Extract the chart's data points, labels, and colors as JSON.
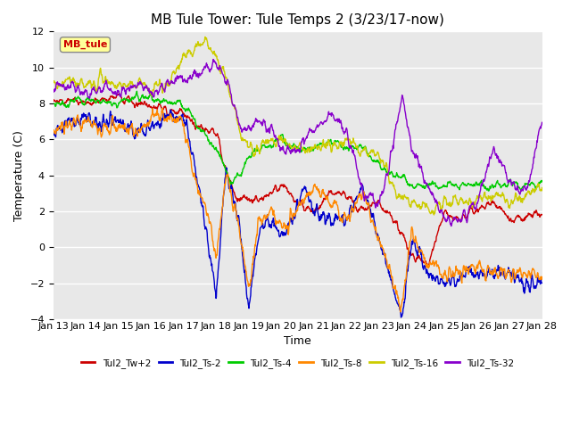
{
  "title": "MB Tule Tower: Tule Temps 2 (3/23/17-now)",
  "xlabel": "Time",
  "ylabel": "Temperature (C)",
  "ylim": [
    -4,
    12
  ],
  "yticks": [
    -4,
    -2,
    0,
    2,
    4,
    6,
    8,
    10,
    12
  ],
  "xtick_labels": [
    "Jan 13",
    "Jan 14",
    "Jan 15",
    "Jan 16",
    "Jan 17",
    "Jan 18",
    "Jan 19",
    "Jan 20",
    "Jan 21",
    "Jan 22",
    "Jan 23",
    "Jan 24",
    "Jan 25",
    "Jan 26",
    "Jan 27",
    "Jan 28"
  ],
  "series_names": [
    "Tul2_Tw+2",
    "Tul2_Ts-2",
    "Tul2_Ts-4",
    "Tul2_Ts-8",
    "Tul2_Ts-16",
    "Tul2_Ts-32"
  ],
  "series_colors": [
    "#cc0000",
    "#0000cc",
    "#00cc00",
    "#ff8800",
    "#cccc00",
    "#8800cc"
  ],
  "line_width": 1.0,
  "annotation_text": "MB_tule",
  "annotation_color": "#cc0000",
  "annotation_box_color": "#ffff99",
  "background_color": "#ffffff",
  "plot_bg_color": "#e8e8e8",
  "grid_color": "#ffffff",
  "title_fontsize": 11,
  "label_fontsize": 9,
  "tick_fontsize": 8
}
